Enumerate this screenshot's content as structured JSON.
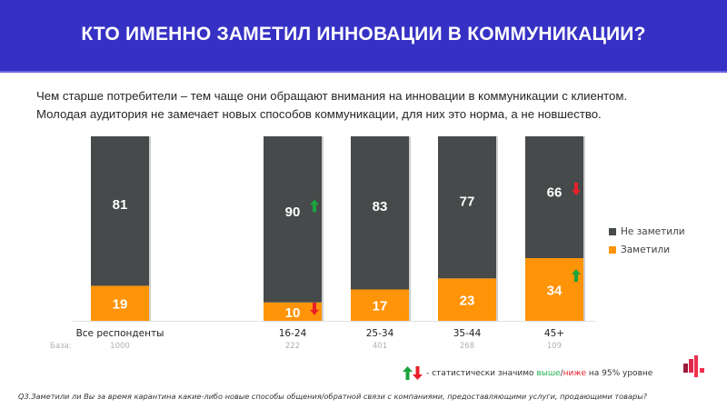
{
  "header": {
    "title": "КТО ИМЕННО ЗАМЕТИЛ ИННОВАЦИИ В КОММУНИКАЦИИ?"
  },
  "subtitle": {
    "line1": "Чем старше потребители – тем чаще они обращают внимания на инновации в коммуникации с клиентом.",
    "line2": "Молодая аудитория не замечает новых способов коммуникации, для них это норма, а не новшество."
  },
  "colors": {
    "header_bg": "#3631c4",
    "not_noticed": "#464a4a",
    "noticed": "#ff9408",
    "arrow_up": "#1aa33c",
    "arrow_down": "#e8202a",
    "higher_text": "#23b14d",
    "lower_text": "#e8202a"
  },
  "chart_data": {
    "type": "bar",
    "stacked": true,
    "title": "",
    "xlabel": "",
    "ylabel": "",
    "ylim": [
      0,
      100
    ],
    "categories": [
      "Все респонденты",
      "16-24",
      "25-34",
      "35-44",
      "45+"
    ],
    "base_label": "База:",
    "bases": [
      "1000",
      "222",
      "401",
      "268",
      "109"
    ],
    "series": [
      {
        "name": "Заметили",
        "color": "#ff9408",
        "values": [
          19,
          10,
          17,
          23,
          34
        ],
        "significance": [
          "",
          "down",
          "",
          "",
          "up"
        ]
      },
      {
        "name": "Не заметили",
        "color": "#464a4a",
        "values": [
          81,
          90,
          83,
          77,
          66
        ],
        "significance": [
          "",
          "up",
          "",
          "",
          "down"
        ]
      }
    ],
    "legend": {
      "position": "right",
      "entries": [
        "Не заметили",
        "Заметили"
      ]
    },
    "grid": false
  },
  "significance_note": {
    "prefix": "- статистически значимо ",
    "higher": "выше",
    "sep": "/",
    "lower": "ниже",
    "suffix": " на 95% уровне"
  },
  "footnote": "Q3.Заметили ли Вы за время карантина какие-либо новые способы общения/обратной связи с компаниями, предоставляющими услуги, продающими товары?",
  "logo": "brand-logo-icon"
}
